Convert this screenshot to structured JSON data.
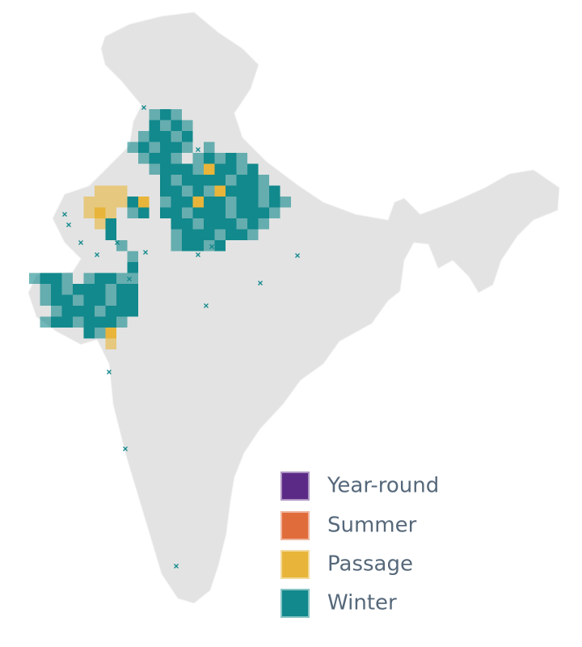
{
  "legend": {
    "items": [
      {
        "label": "Year-round",
        "color": "#5b2a86"
      },
      {
        "label": "Summer",
        "color": "#e06c3c"
      },
      {
        "label": "Passage",
        "color": "#e8b53a"
      },
      {
        "label": "Winter",
        "color": "#12898c"
      }
    ]
  }
}
